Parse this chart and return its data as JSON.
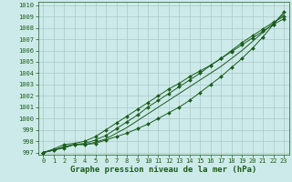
{
  "xlabel": "Graphe pression niveau de la mer (hPa)",
  "xlim": [
    -0.5,
    23.5
  ],
  "ylim": [
    996.8,
    1010.3
  ],
  "yticks": [
    997,
    998,
    999,
    1000,
    1001,
    1002,
    1003,
    1004,
    1005,
    1006,
    1007,
    1008,
    1009,
    1010
  ],
  "xticks": [
    0,
    1,
    2,
    3,
    4,
    5,
    6,
    7,
    8,
    9,
    10,
    11,
    12,
    13,
    14,
    15,
    16,
    17,
    18,
    19,
    20,
    21,
    22,
    23
  ],
  "background_color": "#cdeaea",
  "grid_color": "#aac8c8",
  "line_color": "#1a5c1a",
  "series": [
    [
      997.0,
      997.2,
      997.5,
      997.7,
      997.7,
      997.8,
      998.1,
      998.4,
      998.7,
      999.1,
      999.5,
      1000.0,
      1000.5,
      1001.0,
      1001.6,
      1002.3,
      1003.0,
      1003.7,
      1004.5,
      1005.3,
      1006.2,
      1007.2,
      1008.3,
      1009.4
    ],
    [
      997.0,
      997.2,
      997.5,
      997.7,
      997.7,
      997.9,
      998.2,
      998.7,
      999.2,
      999.8,
      1000.4,
      1001.0,
      1001.6,
      1002.2,
      1002.8,
      1003.4,
      1004.0,
      1004.6,
      1005.3,
      1006.0,
      1006.8,
      1007.6,
      1008.4,
      1009.2
    ],
    [
      997.0,
      997.2,
      997.4,
      997.7,
      997.8,
      998.1,
      998.5,
      999.1,
      999.7,
      1000.3,
      1001.0,
      1001.6,
      1002.2,
      1002.8,
      1003.4,
      1004.0,
      1004.7,
      1005.3,
      1006.0,
      1006.7,
      1007.3,
      1007.9,
      1008.5,
      1009.0
    ],
    [
      997.0,
      997.3,
      997.7,
      997.8,
      998.0,
      998.4,
      999.0,
      999.6,
      1000.2,
      1000.8,
      1001.4,
      1002.0,
      1002.6,
      1003.1,
      1003.7,
      1004.2,
      1004.7,
      1005.3,
      1005.9,
      1006.5,
      1007.1,
      1007.7,
      1008.3,
      1008.8
    ]
  ],
  "marker_series": [
    0,
    2,
    3
  ],
  "marker": "D",
  "markersize": 2.0,
  "linewidth": 0.7,
  "xlabel_fontsize": 6.5,
  "tick_fontsize": 5.0
}
